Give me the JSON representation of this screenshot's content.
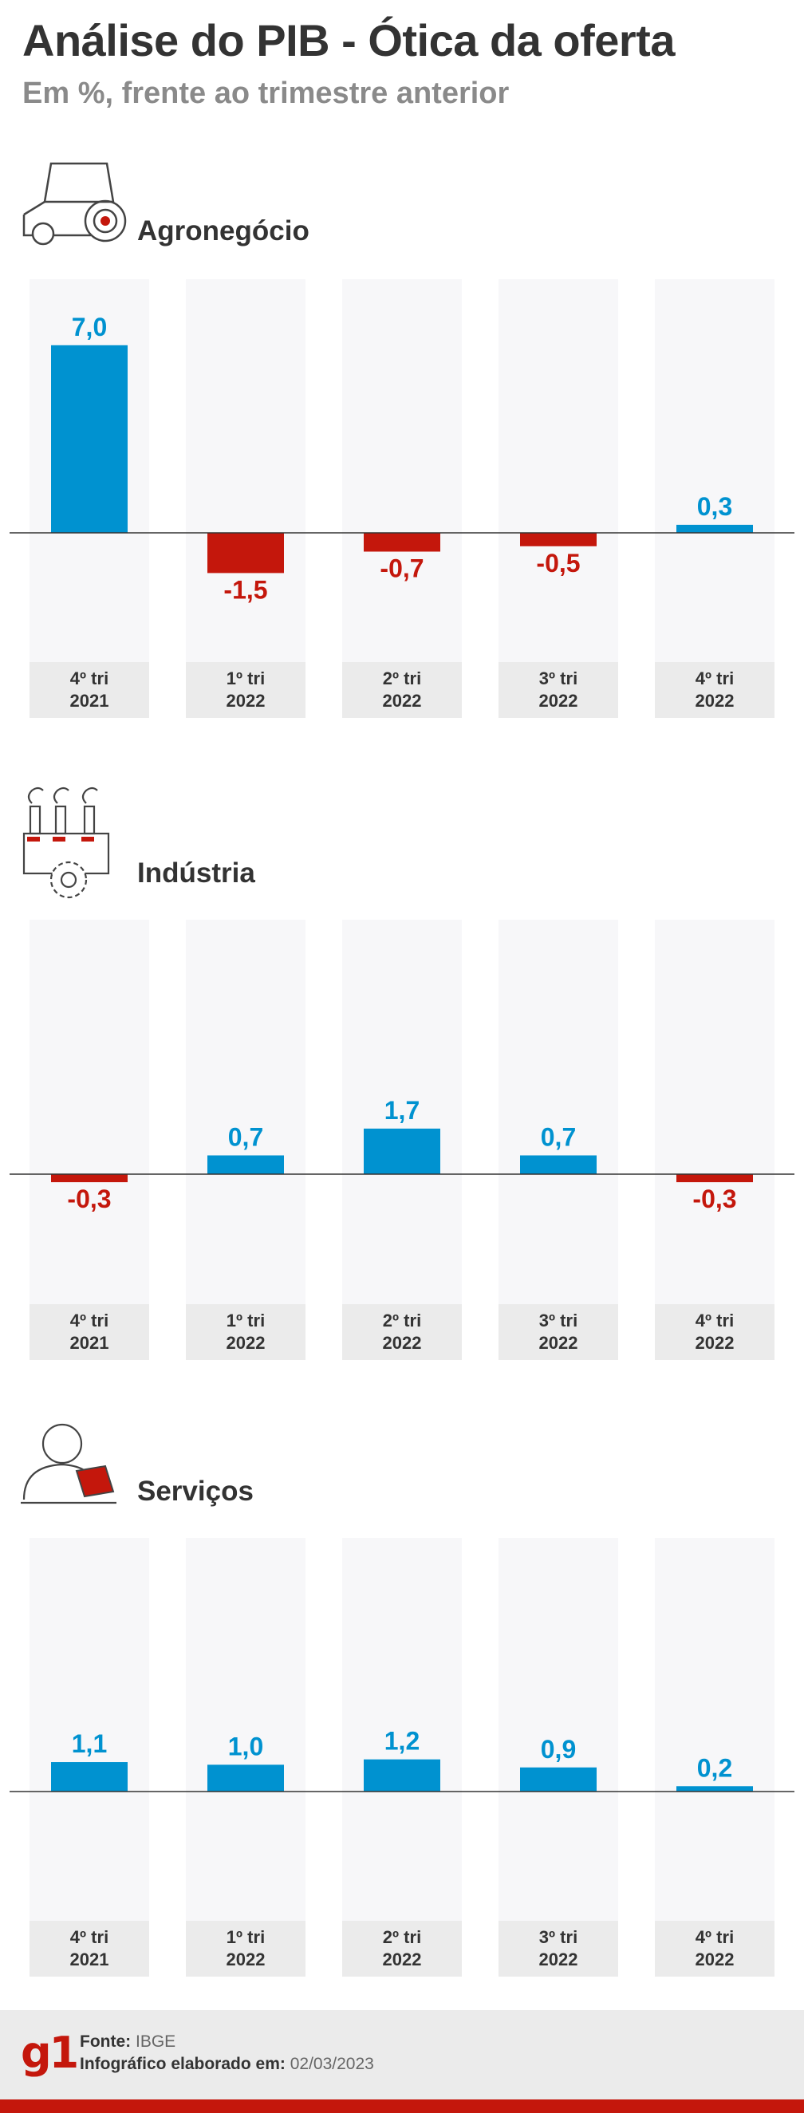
{
  "title": "Análise do PIB - Ótica da oferta",
  "subtitle": "Em %, frente ao trimestre anterior",
  "colors": {
    "positive": "#0092d0",
    "negative": "#c4170c",
    "column_bg": "#f7f7f9",
    "label_bg": "#ebebeb"
  },
  "icons": [
    "tractor-icon",
    "factory-gear-icon",
    "person-laptop-icon"
  ],
  "chart_data": [
    {
      "type": "bar",
      "title": "Agronegócio",
      "categories": [
        [
          "4º tri",
          "2021"
        ],
        [
          "1º tri",
          "2022"
        ],
        [
          "2º tri",
          "2022"
        ],
        [
          "3º tri",
          "2022"
        ],
        [
          "4º tri",
          "2022"
        ]
      ],
      "values": [
        7.0,
        -1.5,
        -0.7,
        -0.5,
        0.3
      ],
      "labels": [
        "7,0",
        "-1,5",
        "-0,7",
        "-0,5",
        "0,3"
      ]
    },
    {
      "type": "bar",
      "title": "Indústria",
      "categories": [
        [
          "4º tri",
          "2021"
        ],
        [
          "1º tri",
          "2022"
        ],
        [
          "2º tri",
          "2022"
        ],
        [
          "3º tri",
          "2022"
        ],
        [
          "4º tri",
          "2022"
        ]
      ],
      "values": [
        -0.3,
        0.7,
        1.7,
        0.7,
        -0.3
      ],
      "labels": [
        "-0,3",
        "0,7",
        "1,7",
        "0,7",
        "-0,3"
      ]
    },
    {
      "type": "bar",
      "title": "Serviços",
      "categories": [
        [
          "4º tri",
          "2021"
        ],
        [
          "1º tri",
          "2022"
        ],
        [
          "2º tri",
          "2022"
        ],
        [
          "3º tri",
          "2022"
        ],
        [
          "4º tri",
          "2022"
        ]
      ],
      "values": [
        1.1,
        1.0,
        1.2,
        0.9,
        0.2
      ],
      "labels": [
        "1,1",
        "1,0",
        "1,2",
        "0,9",
        "0,2"
      ]
    }
  ],
  "footer": {
    "logo": "g1",
    "source_label": "Fonte:",
    "source_value": "IBGE",
    "made_label": "Infográfico elaborado em:",
    "made_value": "02/03/2023"
  }
}
